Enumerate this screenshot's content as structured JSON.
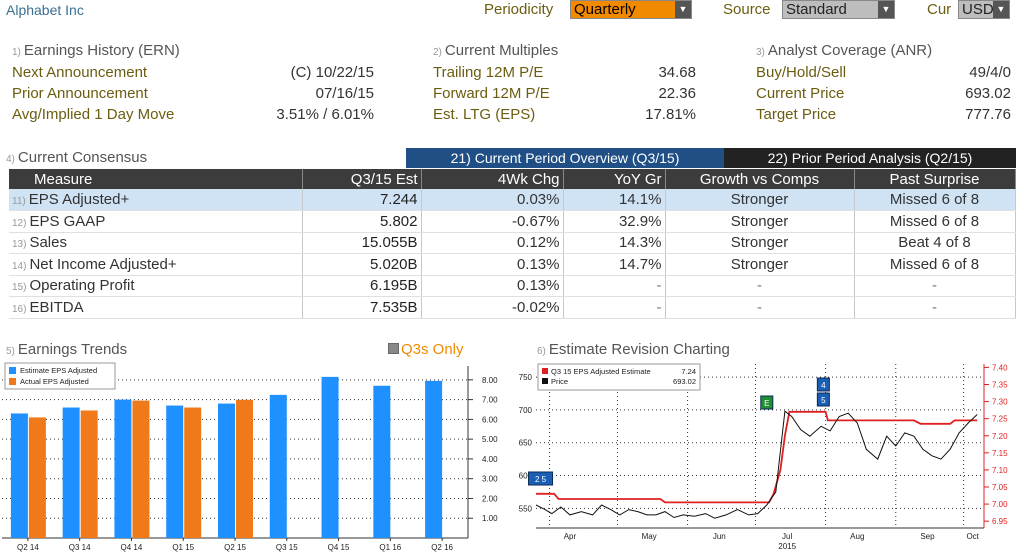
{
  "header": {
    "company": "Alphabet Inc",
    "periodicity_label": "Periodicity",
    "periodicity_value": "Quarterly",
    "source_label": "Source",
    "source_value": "Standard",
    "cur_label": "Cur",
    "cur_value": "USD"
  },
  "earnings_history": {
    "num": "1)",
    "title": "Earnings History (ERN)",
    "rows": [
      {
        "label": "Next Announcement",
        "value": "(C)  10/22/15"
      },
      {
        "label": "Prior Announcement",
        "value": "07/16/15"
      },
      {
        "label": "Avg/Implied 1 Day Move",
        "value": "3.51% / 6.01%"
      }
    ]
  },
  "current_multiples": {
    "num": "2)",
    "title": "Current Multiples",
    "rows": [
      {
        "label": "Trailing 12M P/E",
        "value": "34.68"
      },
      {
        "label": "Forward 12M P/E",
        "value": "22.36"
      },
      {
        "label": "Est. LTG (EPS)",
        "value": "17.81%"
      }
    ]
  },
  "analyst_coverage": {
    "num": "3)",
    "title": "Analyst Coverage (ANR)",
    "rows": [
      {
        "label": "Buy/Hold/Sell",
        "value": "49/4/0"
      },
      {
        "label": "Current Price",
        "value": "693.02"
      },
      {
        "label": "Target Price",
        "value": "777.76"
      }
    ]
  },
  "consensus": {
    "num": "4)",
    "title": "Current Consensus",
    "tab_current": "21) Current Period Overview (Q3/15)",
    "tab_prior": "22) Prior Period Analysis (Q2/15)",
    "columns": [
      "Measure",
      "Q3/15 Est",
      "4Wk Chg",
      "YoY Gr",
      "Growth vs Comps",
      "Past Surprise"
    ],
    "rows": [
      {
        "num": "11)",
        "measure": "EPS Adjusted+",
        "est": "7.244",
        "chg": "0.03%",
        "yoy": "14.1%",
        "growth": "Stronger",
        "surprise": "Missed 6 of 8"
      },
      {
        "num": "12)",
        "measure": "EPS GAAP",
        "est": "5.802",
        "chg": "-0.67%",
        "yoy": "32.9%",
        "growth": "Stronger",
        "surprise": "Missed 6 of 8"
      },
      {
        "num": "13)",
        "measure": "Sales",
        "est": "15.055B",
        "chg": "0.12%",
        "yoy": "14.3%",
        "growth": "Stronger",
        "surprise": "Beat 4 of 8"
      },
      {
        "num": "14)",
        "measure": "Net Income Adjusted+",
        "est": "5.020B",
        "chg": "0.13%",
        "yoy": "14.7%",
        "growth": "Stronger",
        "surprise": "Missed 6 of 8"
      },
      {
        "num": "15)",
        "measure": "Operating Profit",
        "est": "6.195B",
        "chg": "0.13%",
        "yoy": "-",
        "growth": "-",
        "surprise": "-"
      },
      {
        "num": "16)",
        "measure": "EBITDA",
        "est": "7.535B",
        "chg": "-0.02%",
        "yoy": "-",
        "growth": "-",
        "surprise": "-"
      }
    ]
  },
  "trends_panel": {
    "num": "5)",
    "title": "Earnings Trends",
    "q3s_only": "Q3s Only"
  },
  "revision_panel": {
    "num": "6)",
    "title": "Estimate Revision Charting"
  },
  "chart_data": [
    {
      "type": "bar",
      "title": "Earnings Trends",
      "categories": [
        "Q2 14",
        "Q3 14",
        "Q4 14",
        "Q1 15",
        "Q2 15",
        "Q3 15",
        "Q4 15",
        "Q1 16",
        "Q2 16"
      ],
      "series": [
        {
          "name": "Estimate EPS Adjusted",
          "color": "#1e90ff",
          "values": [
            6.3,
            6.6,
            7.0,
            6.7,
            6.8,
            7.24,
            8.15,
            7.7,
            7.95
          ]
        },
        {
          "name": "Actual EPS Adjusted",
          "color": "#f07a1a",
          "values": [
            6.1,
            6.45,
            6.95,
            6.6,
            6.99,
            null,
            null,
            null,
            null
          ]
        }
      ],
      "ylim": [
        0,
        8.7
      ],
      "yticks": [
        "1.00",
        "2.00",
        "3.00",
        "4.00",
        "5.00",
        "6.00",
        "7.00",
        "8.00"
      ],
      "grid": true,
      "legend": "top-left"
    },
    {
      "type": "line",
      "title": "Estimate Revision Charting",
      "xlabel": "2015",
      "x_ticks": [
        "Apr",
        "May",
        "Jun",
        "Jul",
        "Aug",
        "Sep",
        "Oct"
      ],
      "x_range": [
        "2015-03-26",
        "2015-10-10"
      ],
      "left_axis": {
        "ticks": [
          "550",
          "600",
          "650",
          "700",
          "750"
        ],
        "ylim": [
          520,
          770
        ]
      },
      "right_axis": {
        "ticks": [
          "6.95",
          "7.00",
          "7.05",
          "7.10",
          "7.15",
          "7.20",
          "7.25",
          "7.30",
          "7.35",
          "7.40"
        ],
        "ylim": [
          6.93,
          7.41
        ]
      },
      "series": [
        {
          "name": "Q3 15 EPS Adjusted Estimate",
          "legend_value": "7.24",
          "color": "#e02020",
          "axis": "right",
          "x": [
            "2015-03-26",
            "2015-04-03",
            "2015-04-05",
            "2015-05-20",
            "2015-05-22",
            "2015-07-07",
            "2015-07-09",
            "2015-07-12",
            "2015-07-14",
            "2015-07-16",
            "2015-07-18",
            "2015-08-01",
            "2015-08-02",
            "2015-09-09",
            "2015-09-12",
            "2015-09-25",
            "2015-09-27",
            "2015-10-07"
          ],
          "values": [
            7.03,
            7.03,
            7.015,
            7.015,
            7.005,
            7.005,
            7.03,
            7.1,
            7.2,
            7.27,
            7.27,
            7.27,
            7.245,
            7.245,
            7.235,
            7.235,
            7.245,
            7.245
          ]
        },
        {
          "name": "Price",
          "legend_value": "693.02",
          "color": "#111111",
          "axis": "left",
          "x": [
            "2015-03-26",
            "2015-03-30",
            "2015-04-02",
            "2015-04-06",
            "2015-04-10",
            "2015-04-15",
            "2015-04-20",
            "2015-04-24",
            "2015-04-28",
            "2015-05-02",
            "2015-05-06",
            "2015-05-10",
            "2015-05-14",
            "2015-05-18",
            "2015-05-22",
            "2015-05-26",
            "2015-05-30",
            "2015-06-04",
            "2015-06-09",
            "2015-06-13",
            "2015-06-18",
            "2015-06-23",
            "2015-06-28",
            "2015-07-02",
            "2015-07-06",
            "2015-07-10",
            "2015-07-14",
            "2015-07-17",
            "2015-07-21",
            "2015-07-25",
            "2015-07-30",
            "2015-08-03",
            "2015-08-07",
            "2015-08-11",
            "2015-08-15",
            "2015-08-19",
            "2015-08-24",
            "2015-08-28",
            "2015-09-01",
            "2015-09-05",
            "2015-09-09",
            "2015-09-13",
            "2015-09-17",
            "2015-09-21",
            "2015-09-25",
            "2015-09-29",
            "2015-10-03",
            "2015-10-07"
          ],
          "values": [
            555,
            548,
            542,
            552,
            540,
            545,
            540,
            555,
            548,
            540,
            548,
            545,
            540,
            540,
            545,
            536,
            540,
            538,
            542,
            535,
            540,
            548,
            540,
            542,
            555,
            575,
            698,
            690,
            670,
            660,
            675,
            668,
            690,
            695,
            680,
            640,
            625,
            660,
            645,
            665,
            660,
            640,
            630,
            625,
            640,
            665,
            680,
            693
          ]
        }
      ],
      "events": [
        {
          "label": "2 5",
          "x": "2015-03-28"
        },
        {
          "label": "E",
          "x": "2015-07-06"
        },
        {
          "label": "4",
          "x": "2015-07-31"
        },
        {
          "label": "5",
          "x": "2015-07-31"
        }
      ],
      "grid": true,
      "legend": "top-left"
    }
  ],
  "colors": {
    "accent_orange": "#f28a00",
    "tab_active": "#1f4f85",
    "header_dark": "#3c3c3c",
    "selected_row": "#cfe3f5"
  }
}
